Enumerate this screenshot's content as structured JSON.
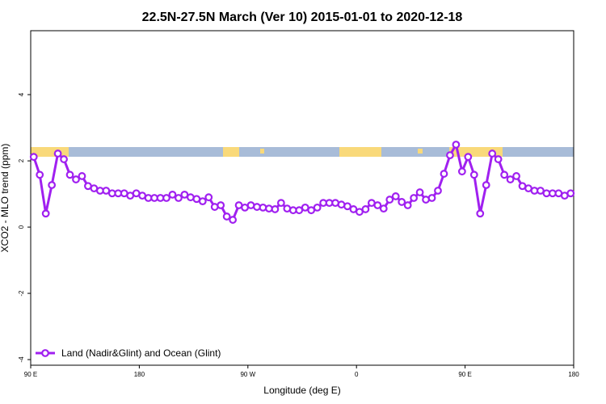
{
  "chart_data": {
    "type": "line",
    "title": "22.5N-27.5N March (Ver 10)   2015-01-01 to 2020-12-18",
    "x_label": "Longitude (deg E)",
    "y_label": "XCO2 - MLO trend (ppm)",
    "xlim": [
      90,
      540
    ],
    "ylim": [
      -4.17,
      5.93
    ],
    "xticks": [
      {
        "value": 90,
        "label": "90 E"
      },
      180,
      {
        "value": 270,
        "label": "90 W"
      },
      {
        "value": 360,
        "label": "0"
      },
      {
        "value": 450,
        "label": "90 E"
      },
      {
        "value": 540,
        "label": "180"
      }
    ],
    "yticks": [
      -4,
      -2,
      0,
      2,
      4
    ],
    "legend": "bottom-left",
    "x": [
      92.5,
      97.5,
      102.5,
      107.5,
      112.5,
      117.5,
      122.5,
      127.5,
      132.5,
      137.5,
      142.5,
      147.5,
      152.5,
      157.5,
      162.5,
      167.5,
      172.5,
      177.5,
      182.5,
      187.5,
      192.5,
      197.5,
      202.5,
      207.5,
      212.5,
      217.5,
      222.5,
      227.5,
      232.5,
      237.5,
      242.5,
      247.5,
      252.5,
      257.5,
      262.5,
      267.5,
      272.5,
      277.5,
      282.5,
      287.5,
      292.5,
      297.5,
      302.5,
      307.5,
      312.5,
      317.5,
      322.5,
      327.5,
      332.5,
      337.5,
      342.5,
      347.5,
      352.5,
      357.5,
      362.5,
      367.5,
      372.5,
      377.5,
      382.5,
      387.5,
      392.5,
      397.5,
      402.5,
      407.5,
      412.5,
      417.5,
      422.5,
      427.5,
      432.5,
      437.5,
      442.5,
      447.5,
      452.5,
      457.5,
      462.5,
      467.5,
      472.5,
      477.5,
      482.5,
      487.5,
      492.5,
      497.5,
      502.5,
      507.5,
      512.5,
      517.5,
      522.5,
      527.5,
      532.5,
      537.5
    ],
    "series": [
      {
        "name": "Land (Nadir&Glint) and Ocean (Glint)",
        "color": "#a020f0",
        "values": [
          2.12,
          1.58,
          0.41,
          1.27,
          2.22,
          2.05,
          1.58,
          1.44,
          1.54,
          1.24,
          1.17,
          1.1,
          1.1,
          1.02,
          1.02,
          1.02,
          0.95,
          1.02,
          0.95,
          0.88,
          0.88,
          0.88,
          0.88,
          0.98,
          0.88,
          0.98,
          0.9,
          0.85,
          0.78,
          0.9,
          0.61,
          0.66,
          0.32,
          0.22,
          0.66,
          0.59,
          0.66,
          0.61,
          0.59,
          0.56,
          0.54,
          0.73,
          0.56,
          0.51,
          0.51,
          0.59,
          0.51,
          0.59,
          0.73,
          0.73,
          0.73,
          0.68,
          0.63,
          0.54,
          0.46,
          0.54,
          0.73,
          0.66,
          0.56,
          0.83,
          0.93,
          0.76,
          0.66,
          0.88,
          1.05,
          0.83,
          0.88,
          1.1,
          1.61,
          2.17,
          2.49,
          1.68,
          2.12,
          1.58,
          0.41,
          1.27,
          2.22,
          2.05,
          1.58,
          1.44,
          1.54,
          1.24,
          1.17,
          1.1,
          1.1,
          1.02,
          1.02,
          1.02,
          0.95,
          1.02
        ]
      }
    ]
  }
}
